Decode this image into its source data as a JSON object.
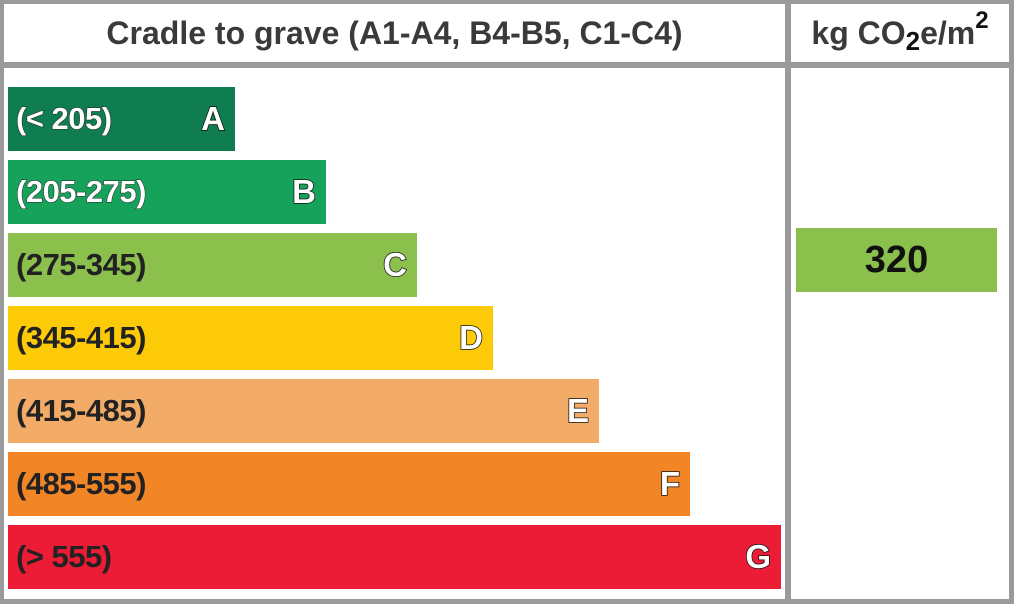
{
  "header": {
    "title": "Cradle to grave (A1-A4, B4-B5, C1-C4)",
    "unit_prefix": "kg CO",
    "unit_sub": "2",
    "unit_mid": "e/m",
    "unit_sup": "2"
  },
  "chart_data": {
    "type": "bar",
    "orientation": "horizontal",
    "title": "Cradle to grave (A1-A4, B4-B5, C1-C4)",
    "unit": "kg CO2e/m2",
    "bands": [
      {
        "grade": "A",
        "range": "(< 205)",
        "color": "#0f7d4f",
        "label_style": "light"
      },
      {
        "grade": "B",
        "range": "(205-275)",
        "color": "#16a25a",
        "label_style": "light"
      },
      {
        "grade": "C",
        "range": "(275-345)",
        "color": "#8cc04d",
        "label_style": "dark"
      },
      {
        "grade": "D",
        "range": "(345-415)",
        "color": "#fdca07",
        "label_style": "dark"
      },
      {
        "grade": "E",
        "range": "(415-485)",
        "color": "#f3ab68",
        "label_style": "dark"
      },
      {
        "grade": "F",
        "range": "(485-555)",
        "color": "#f28525",
        "label_style": "dark"
      },
      {
        "grade": "G",
        "range": "(> 555)",
        "color": "#ec1c36",
        "label_style": "dark"
      }
    ],
    "value": 320,
    "value_grade": "C",
    "value_color": "#8cc04d"
  }
}
